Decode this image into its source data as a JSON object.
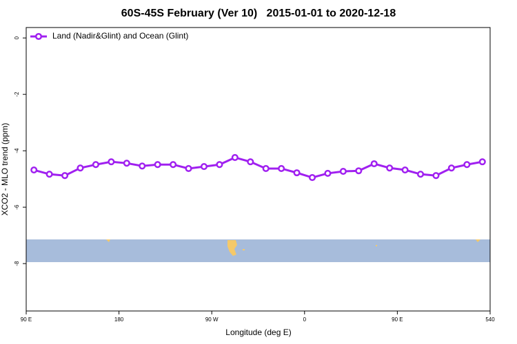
{
  "chart_data": {
    "type": "line",
    "title": "60S-45S February (Ver 10)   2015-01-01 to 2020-12-18",
    "xlabel": "Longitude (deg E)",
    "ylabel": "XCO2 - MLO trend (ppm)",
    "x": [
      97.5,
      112.5,
      127.5,
      142.5,
      157.5,
      172.5,
      187.5,
      202.5,
      217.5,
      232.5,
      247.5,
      262.5,
      277.5,
      292.5,
      307.5,
      322.5,
      337.5,
      352.5,
      367.5,
      382.5,
      397.5,
      412.5,
      427.5,
      442.5,
      457.5,
      472.5,
      487.5,
      502.5,
      517.5,
      532.5
    ],
    "series": [
      {
        "name": "Land (Nadir&Glint) and Ocean (Glint)",
        "color": "#a020f0",
        "values": [
          -4.68,
          -4.83,
          -4.88,
          -4.61,
          -4.49,
          -4.39,
          -4.44,
          -4.54,
          -4.49,
          -4.49,
          -4.63,
          -4.56,
          -4.49,
          -4.24,
          -4.39,
          -4.63,
          -4.63,
          -4.78,
          -4.95,
          -4.8,
          -4.73,
          -4.71,
          -4.46,
          -4.61,
          -4.68,
          -4.83,
          -4.88,
          -4.61,
          -4.49,
          -4.39
        ]
      }
    ],
    "xlim": [
      90,
      540
    ],
    "xticks": [
      {
        "value": 90,
        "label": "90 E"
      },
      180,
      {
        "value": 270,
        "label": "90 W"
      },
      {
        "value": 360,
        "label": "0"
      },
      {
        "value": 450,
        "label": "90 E"
      },
      540
    ],
    "ylim": [
      -9.68,
      0.37
    ],
    "yticks": [
      0,
      -2,
      -4,
      -6,
      -8
    ],
    "legend_position": "top-left"
  }
}
